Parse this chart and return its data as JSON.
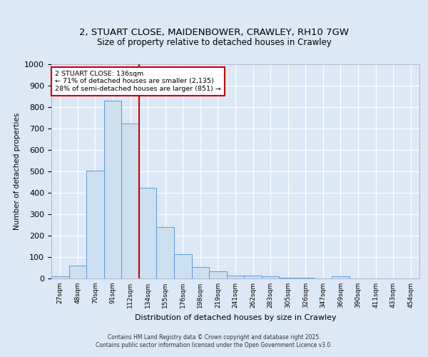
{
  "title_line1": "2, STUART CLOSE, MAIDENBOWER, CRAWLEY, RH10 7GW",
  "title_line2": "Size of property relative to detached houses in Crawley",
  "xlabel": "Distribution of detached houses by size in Crawley",
  "ylabel": "Number of detached properties",
  "bar_labels": [
    "27sqm",
    "48sqm",
    "70sqm",
    "91sqm",
    "112sqm",
    "134sqm",
    "155sqm",
    "176sqm",
    "198sqm",
    "219sqm",
    "241sqm",
    "262sqm",
    "283sqm",
    "305sqm",
    "326sqm",
    "347sqm",
    "369sqm",
    "390sqm",
    "411sqm",
    "433sqm",
    "454sqm"
  ],
  "bar_heights": [
    10,
    60,
    505,
    830,
    725,
    425,
    240,
    115,
    55,
    35,
    15,
    15,
    10,
    5,
    5,
    0,
    10,
    0,
    0,
    0,
    0
  ],
  "bar_color": "#cce0f0",
  "bar_edge_color": "#5b9bd5",
  "annotation_title": "2 STUART CLOSE: 136sqm",
  "annotation_line1": "← 71% of detached houses are smaller (2,135)",
  "annotation_line2": "28% of semi-detached houses are larger (851) →",
  "annotation_box_color": "#ffffff",
  "annotation_box_edge": "#cc0000",
  "vline_color": "#cc0000",
  "vline_position": 5,
  "ylim": [
    0,
    1000
  ],
  "yticks": [
    0,
    100,
    200,
    300,
    400,
    500,
    600,
    700,
    800,
    900,
    1000
  ],
  "background_color": "#dce8f5",
  "plot_bg_color": "#dce8f5",
  "grid_color": "#ffffff",
  "footnote1": "Contains HM Land Registry data © Crown copyright and database right 2025.",
  "footnote2": "Contains public sector information licensed under the Open Government Licence v3.0."
}
